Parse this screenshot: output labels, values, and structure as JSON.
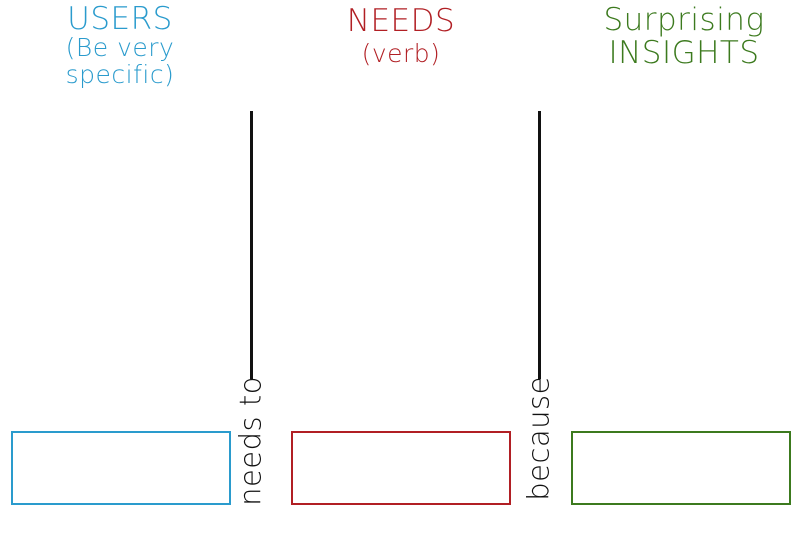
{
  "columns": {
    "users": {
      "title": "USERS",
      "subtitle": "(Be very specific)",
      "color": "#2a9bcd"
    },
    "needs": {
      "title": "NEEDS",
      "subtitle": "(verb)",
      "color": "#b11f24"
    },
    "insights": {
      "title": "Surprising INSIGHTS",
      "color": "#3c7a1e"
    }
  },
  "connectors": {
    "first": "needs to",
    "second": "because"
  }
}
